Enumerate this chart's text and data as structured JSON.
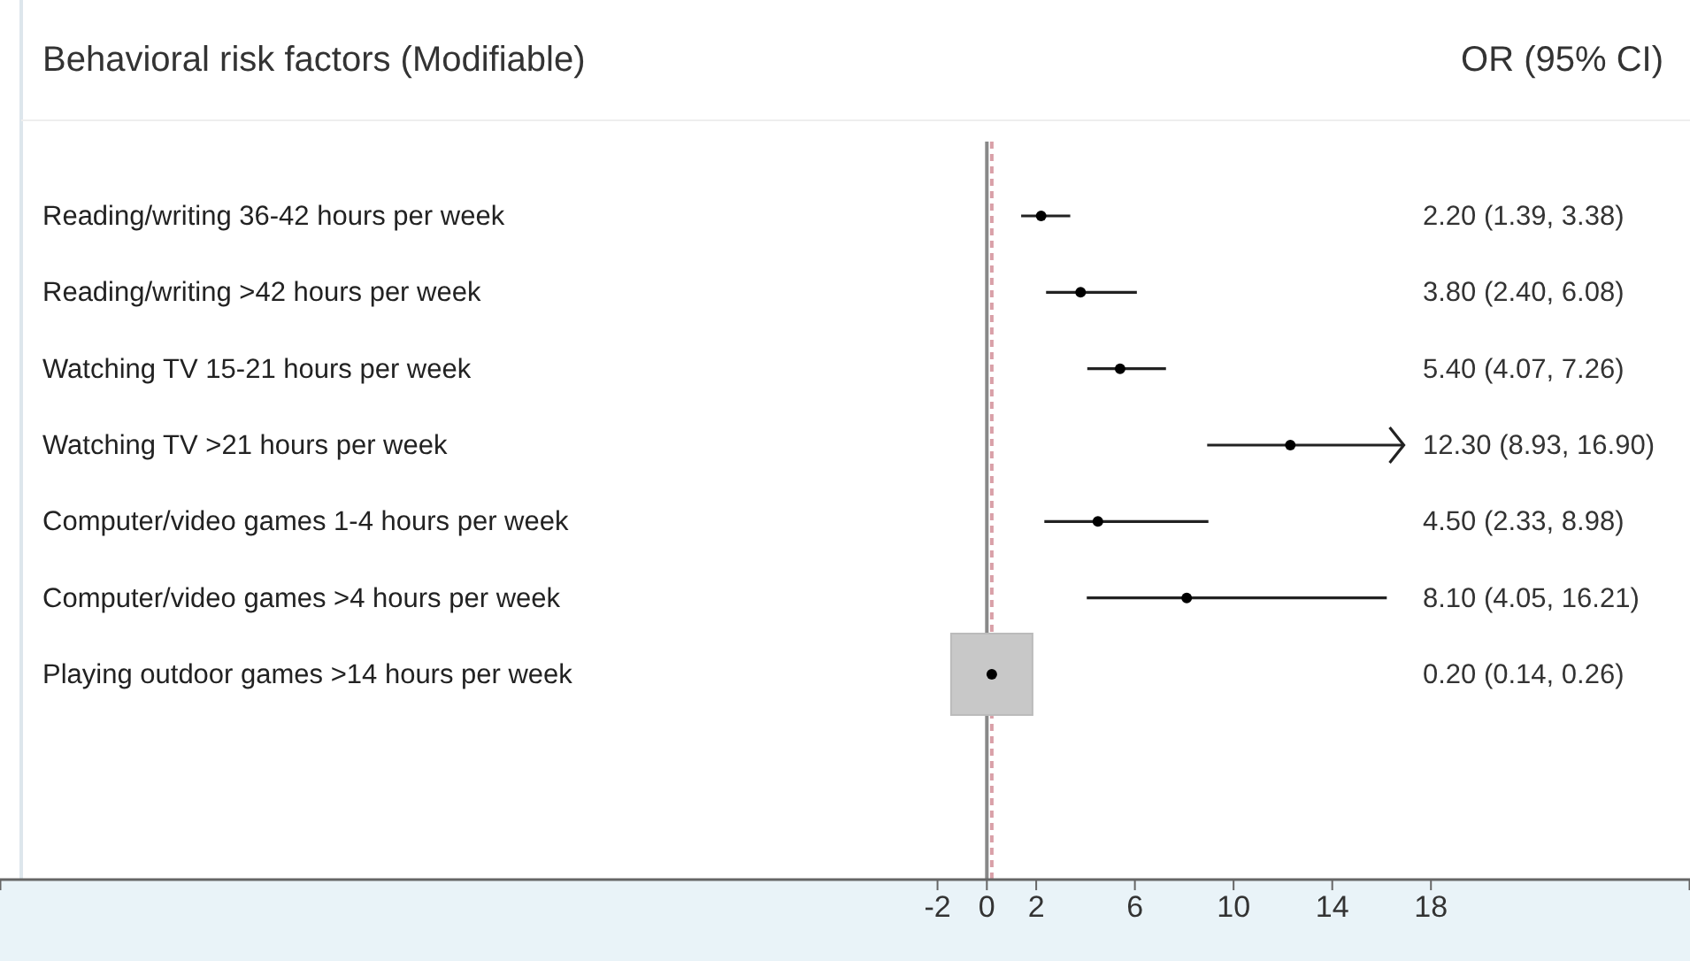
{
  "chart_data": {
    "type": "scatter",
    "orientation": "horizontal",
    "title": "Behavioral risk factors (Modifiable)",
    "annotations": [
      "OR (95% CI)",
      "2.20 (1.39, 3.38)",
      "3.80 (2.40, 6.08)",
      "5.40 (4.07, 7.26)",
      "12.30 (8.93, 16.90)",
      "4.50 (2.33, 8.98)",
      "8.10 (4.05, 16.21)",
      "0.20 (0.14, 0.26)"
    ],
    "categories": [
      "Reading/writing 36-42 hours per week",
      "Reading/writing >42 hours per week",
      "Watching TV 15-21 hours per week",
      "Watching TV >21 hours per week",
      "Computer/video games 1-4 hours per week",
      "Computer/video games >4 hours per week",
      "Playing outdoor games >14 hours per week"
    ],
    "values": [
      2.2,
      3.8,
      5.4,
      12.3,
      4.5,
      8.1,
      0.2
    ],
    "errors": [
      [
        1.39,
        3.38
      ],
      [
        2.4,
        6.08
      ],
      [
        4.07,
        7.26
      ],
      [
        8.93,
        16.9
      ],
      [
        2.33,
        8.98
      ],
      [
        4.05,
        16.21
      ],
      [
        0.14,
        0.26
      ]
    ],
    "color": "#000000",
    "marker": "circle",
    "xlim": [
      -40,
      28.5
    ],
    "xticks": [
      -2,
      0,
      2,
      6,
      10,
      14,
      18
    ],
    "ref_lines": [
      {
        "axis": "x",
        "value": 0,
        "color": "#888888",
        "line_style": "solid"
      },
      {
        "axis": "x",
        "value": 0.2,
        "color": "#d9a0a8",
        "line_style": "dashed"
      }
    ],
    "grid": false
  }
}
